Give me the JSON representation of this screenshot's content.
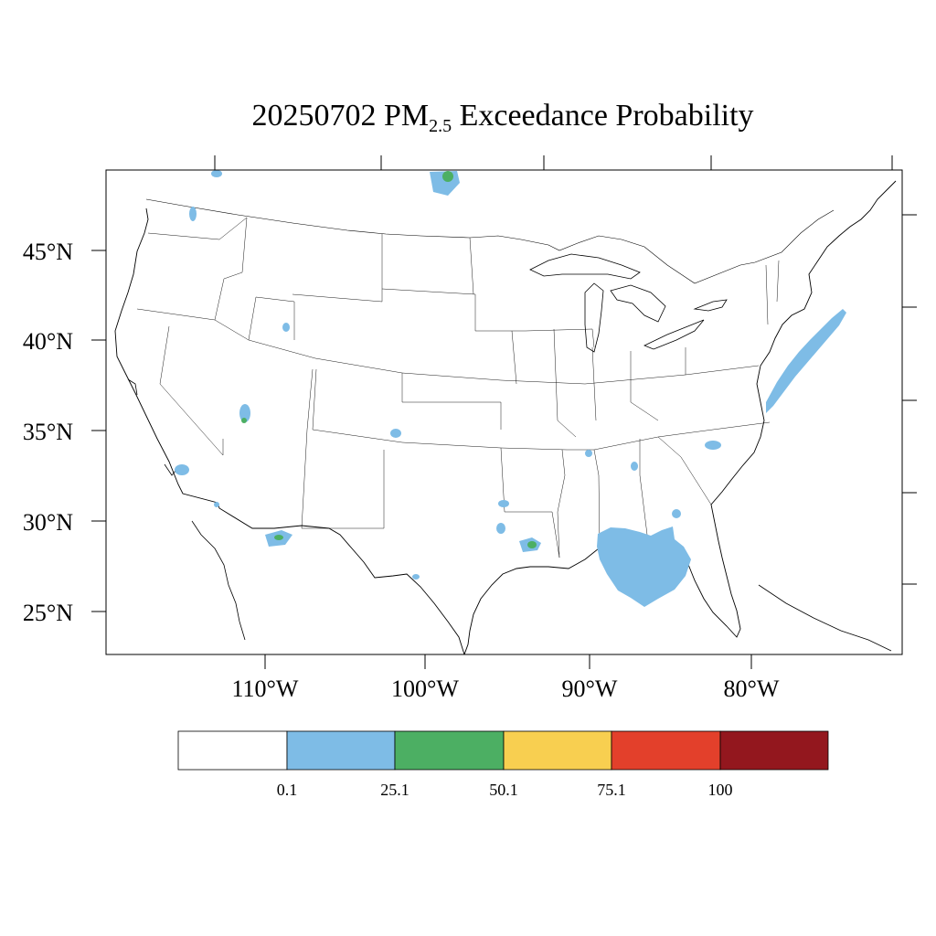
{
  "title": {
    "date": "20250702",
    "pm": "PM",
    "sub": "2.5",
    "rest": "Exceedance Probability"
  },
  "lat_labels": [
    "45°N",
    "40°N",
    "35°N",
    "30°N",
    "25°N"
  ],
  "lon_labels": [
    "110°W",
    "100°W",
    "90°W",
    "80°W"
  ],
  "legend": {
    "colors": [
      "#ffffff",
      "#7ebce6",
      "#4caf63",
      "#f8cf50",
      "#e3402b",
      "#93171e"
    ],
    "labels": [
      "0.1",
      "25.1",
      "50.1",
      "75.1",
      "100"
    ]
  }
}
